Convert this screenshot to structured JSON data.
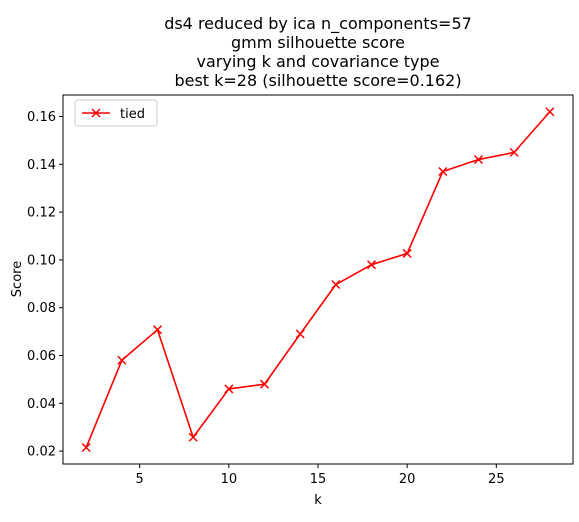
{
  "chart_data": {
    "type": "line",
    "title_lines": [
      "ds4 reduced by ica n_components=57",
      "gmm silhouette score",
      "varying k and covariance type",
      "best k=28 (silhouette score=0.162)"
    ],
    "xlabel": "k",
    "ylabel": "Score",
    "xlim": [
      0.7,
      29.3
    ],
    "ylim": [
      0.0146,
      0.169
    ],
    "xticks": [
      5,
      10,
      15,
      20,
      25
    ],
    "yticks": [
      0.02,
      0.04,
      0.06,
      0.08,
      0.1,
      0.12,
      0.14,
      0.16
    ],
    "ytick_labels": [
      "0.02",
      "0.04",
      "0.06",
      "0.08",
      "0.10",
      "0.12",
      "0.14",
      "0.16"
    ],
    "grid": false,
    "legend_position": "upper-left",
    "series": [
      {
        "name": "tied",
        "color": "#ff0000",
        "marker": "x",
        "x": [
          2,
          4,
          6,
          8,
          10,
          12,
          14,
          16,
          18,
          20,
          22,
          24,
          26,
          28
        ],
        "y": [
          0.0215,
          0.058,
          0.0708,
          0.0258,
          0.046,
          0.048,
          0.069,
          0.0897,
          0.098,
          0.1027,
          0.137,
          0.142,
          0.145,
          0.162
        ]
      }
    ]
  }
}
